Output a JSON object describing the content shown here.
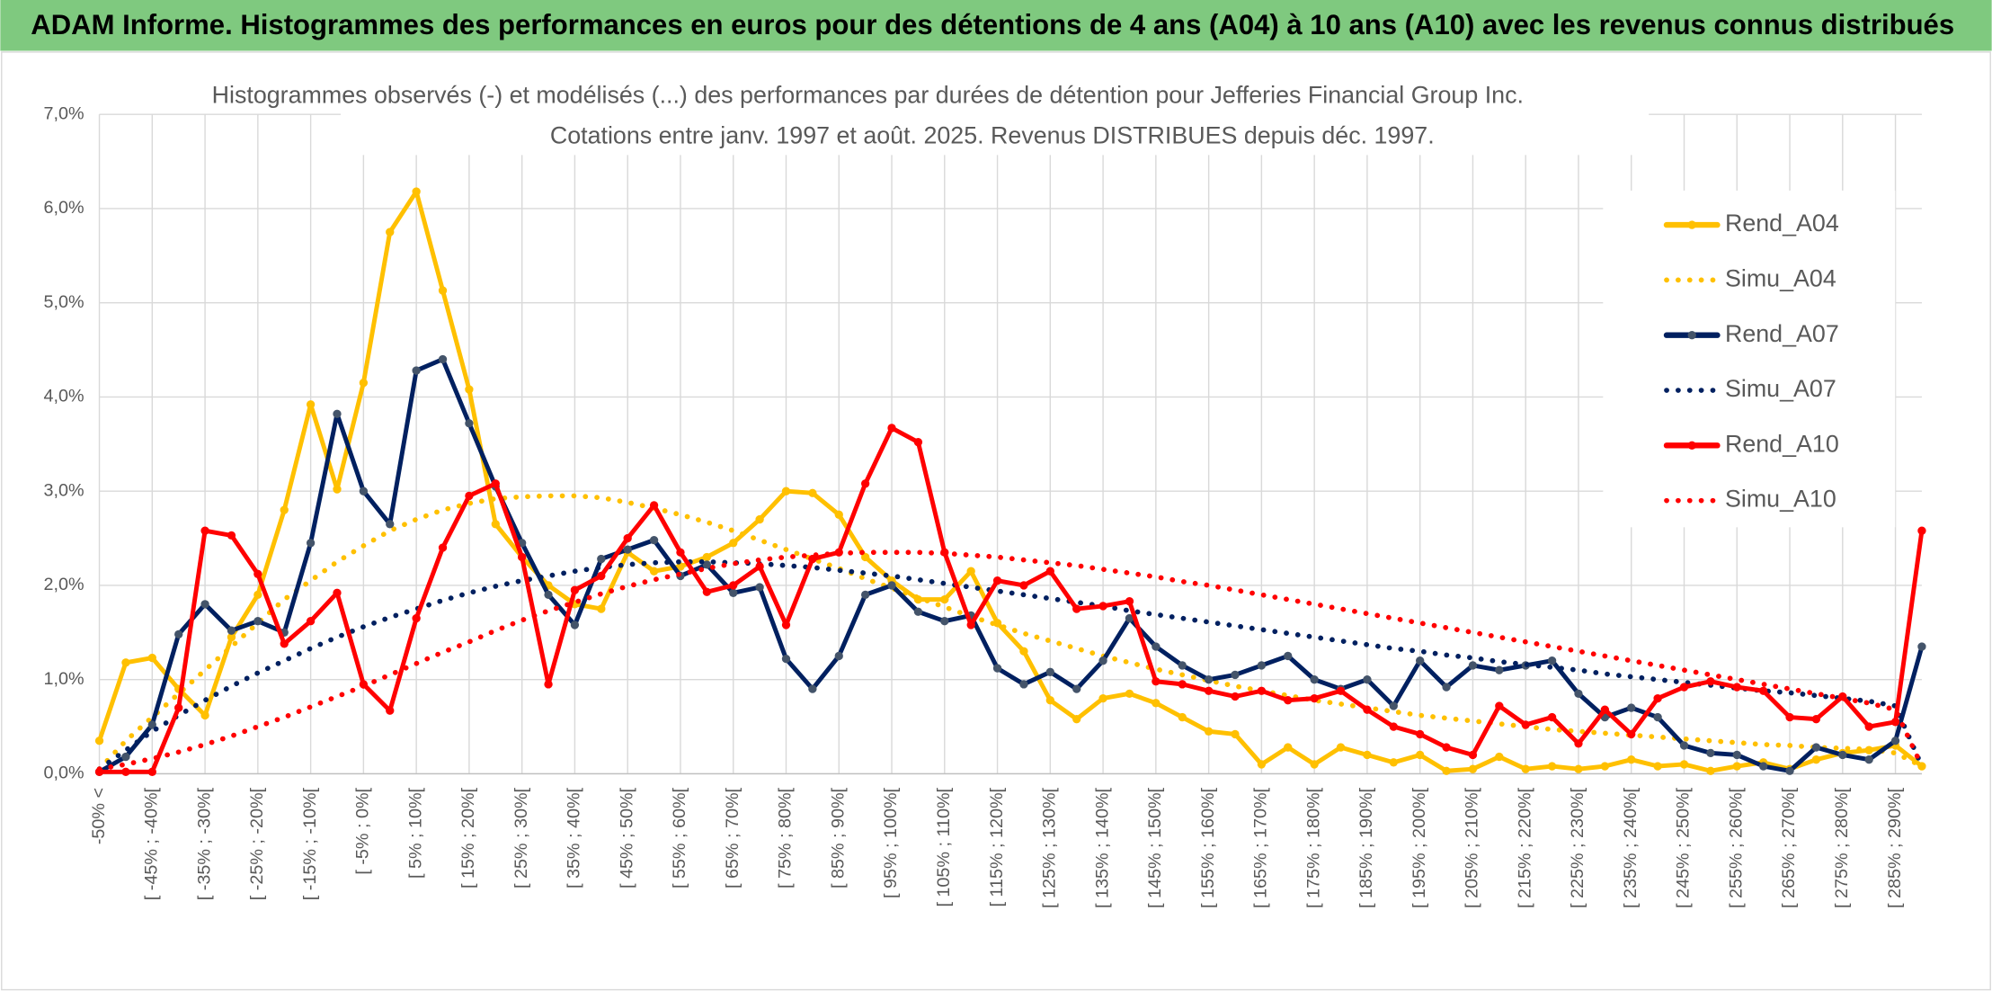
{
  "header": {
    "title": "ADAM Informe. Histogrammes des performances en euros pour des détentions de 4 ans (A04) à 10 ans (A10) avec les revenus connus distribués"
  },
  "chart_data": {
    "type": "line",
    "title": "Histogrammes observés (-) et modélisés (...) des performances par durées de détention pour Jefferies Financial Group Inc.",
    "subtitle": "Cotations entre janv. 1997 et août. 2025. Revenus DISTRIBUES depuis déc. 1997.",
    "categories": [
      "-50% <",
      null,
      "[ -45% ; -40%[",
      null,
      "[ -35% ; -30%[",
      null,
      "[ -25% ; -20%[",
      null,
      "[ -15% ; -10%[",
      null,
      "[ -5% ; 0%[",
      null,
      "[ 5% ; 10%[",
      null,
      "[ 15% ; 20%[",
      null,
      "[ 25% ; 30%[",
      null,
      "[ 35% ; 40%[",
      null,
      "[ 45% ; 50%[",
      null,
      "[ 55% ; 60%[",
      null,
      "[ 65% ; 70%[",
      null,
      "[ 75% ; 80%[",
      null,
      "[ 85% ; 90%[",
      null,
      "[ 95% ; 100%[",
      null,
      "[ 105% ; 110%[",
      null,
      "[ 115% ; 120%[",
      null,
      "[ 125% ; 130%[",
      null,
      "[ 135% ; 140%[",
      null,
      "[ 145% ; 150%[",
      null,
      "[ 155% ; 160%[",
      null,
      "[ 165% ; 170%[",
      null,
      "[ 175% ; 180%[",
      null,
      "[ 185% ; 190%[",
      null,
      "[ 195% ; 200%[",
      null,
      "[ 205% ; 210%[",
      null,
      "[ 215% ; 220%[",
      null,
      "[ 225% ; 230%[",
      null,
      "[ 235% ; 240%[",
      null,
      "[ 245% ; 250%[",
      null,
      "[ 255% ; 260%[",
      null,
      "[ 265% ; 270%[",
      null,
      "[ 275% ; 280%[",
      null,
      "[ 285% ; 290%[",
      null
    ],
    "series": [
      {
        "name": "Rend_A04",
        "color": "#ffc000",
        "line_style": "solid",
        "markers": true,
        "values": [
          0.35,
          1.18,
          1.23,
          0.9,
          0.62,
          1.45,
          1.9,
          2.8,
          3.92,
          3.02,
          4.15,
          5.75,
          6.18,
          5.13,
          4.08,
          2.65,
          2.3,
          2.0,
          1.8,
          1.75,
          2.35,
          2.15,
          2.2,
          2.3,
          2.45,
          2.7,
          3.0,
          2.98,
          2.75,
          2.3,
          2.05,
          1.85,
          1.85,
          2.15,
          1.6,
          1.3,
          0.78,
          0.58,
          0.8,
          0.85,
          0.75,
          0.6,
          0.45,
          0.42,
          0.1,
          0.28,
          0.1,
          0.28,
          0.2,
          0.12,
          0.2,
          0.03,
          0.05,
          0.18,
          0.05,
          0.08,
          0.05,
          0.08,
          0.15,
          0.08,
          0.1,
          0.03,
          0.08,
          0.12,
          0.05,
          0.15,
          0.22,
          0.25,
          0.3,
          0.08
        ]
      },
      {
        "name": "Simu_A04",
        "color": "#ffc000",
        "line_style": "dotted",
        "markers": false,
        "values": [
          0.05,
          0.35,
          0.6,
          0.85,
          1.1,
          1.35,
          1.6,
          1.85,
          2.05,
          2.25,
          2.42,
          2.58,
          2.7,
          2.8,
          2.87,
          2.92,
          2.94,
          2.95,
          2.95,
          2.93,
          2.88,
          2.82,
          2.75,
          2.67,
          2.58,
          2.48,
          2.38,
          2.28,
          2.18,
          2.07,
          1.97,
          1.87,
          1.77,
          1.67,
          1.58,
          1.49,
          1.41,
          1.33,
          1.25,
          1.18,
          1.11,
          1.05,
          0.99,
          0.93,
          0.88,
          0.83,
          0.78,
          0.74,
          0.7,
          0.66,
          0.62,
          0.59,
          0.56,
          0.53,
          0.5,
          0.47,
          0.45,
          0.43,
          0.41,
          0.39,
          0.37,
          0.35,
          0.33,
          0.31,
          0.3,
          0.28,
          0.27,
          0.26,
          0.22,
          0.08
        ]
      },
      {
        "name": "Rend_A07",
        "color": "#002060",
        "line_style": "solid",
        "markers": true,
        "marker_color": "#44546a",
        "values": [
          0.02,
          0.18,
          0.52,
          1.48,
          1.8,
          1.52,
          1.62,
          1.5,
          2.45,
          3.82,
          3.0,
          2.65,
          4.28,
          4.4,
          3.72,
          3.05,
          2.45,
          1.9,
          1.58,
          2.28,
          2.38,
          2.48,
          2.1,
          2.22,
          1.92,
          1.98,
          1.22,
          0.9,
          1.25,
          1.9,
          2.0,
          1.72,
          1.62,
          1.68,
          1.12,
          0.95,
          1.08,
          0.9,
          1.2,
          1.65,
          1.35,
          1.15,
          1.0,
          1.05,
          1.15,
          1.25,
          1.0,
          0.9,
          1.0,
          0.72,
          1.2,
          0.92,
          1.15,
          1.1,
          1.15,
          1.2,
          0.85,
          0.6,
          0.7,
          0.6,
          0.3,
          0.22,
          0.2,
          0.08,
          0.03,
          0.28,
          0.2,
          0.15,
          0.35,
          1.35
        ]
      },
      {
        "name": "Simu_A07",
        "color": "#002060",
        "line_style": "dotted",
        "markers": false,
        "values": [
          0.05,
          0.25,
          0.45,
          0.62,
          0.78,
          0.93,
          1.07,
          1.2,
          1.33,
          1.45,
          1.56,
          1.66,
          1.75,
          1.84,
          1.92,
          1.99,
          2.05,
          2.1,
          2.15,
          2.19,
          2.22,
          2.24,
          2.25,
          2.25,
          2.24,
          2.23,
          2.21,
          2.19,
          2.16,
          2.13,
          2.1,
          2.06,
          2.02,
          1.98,
          1.94,
          1.9,
          1.86,
          1.82,
          1.78,
          1.73,
          1.69,
          1.65,
          1.61,
          1.57,
          1.53,
          1.49,
          1.45,
          1.41,
          1.37,
          1.33,
          1.3,
          1.26,
          1.23,
          1.19,
          1.16,
          1.13,
          1.1,
          1.06,
          1.03,
          1.0,
          0.97,
          0.94,
          0.91,
          0.88,
          0.86,
          0.83,
          0.8,
          0.77,
          0.72,
          0.08
        ]
      },
      {
        "name": "Rend_A10",
        "color": "#ff0000",
        "line_style": "solid",
        "markers": true,
        "values": [
          0.02,
          0.02,
          0.02,
          0.7,
          2.58,
          2.53,
          2.12,
          1.38,
          1.62,
          1.92,
          0.95,
          0.67,
          1.65,
          2.4,
          2.95,
          3.08,
          2.3,
          0.95,
          1.95,
          2.1,
          2.5,
          2.85,
          2.35,
          1.93,
          2.0,
          2.2,
          1.58,
          2.28,
          2.35,
          3.08,
          3.67,
          3.52,
          2.35,
          1.58,
          2.05,
          2.0,
          2.15,
          1.75,
          1.78,
          1.83,
          0.98,
          0.95,
          0.88,
          0.82,
          0.88,
          0.78,
          0.8,
          0.88,
          0.68,
          0.5,
          0.42,
          0.28,
          0.2,
          0.72,
          0.52,
          0.6,
          0.32,
          0.68,
          0.42,
          0.8,
          0.92,
          0.98,
          0.92,
          0.88,
          0.6,
          0.58,
          0.82,
          0.5,
          0.55,
          2.58
        ]
      },
      {
        "name": "Simu_A10",
        "color": "#ff0000",
        "line_style": "dotted",
        "markers": false,
        "values": [
          0.05,
          0.1,
          0.16,
          0.23,
          0.31,
          0.4,
          0.5,
          0.6,
          0.71,
          0.82,
          0.93,
          1.05,
          1.17,
          1.29,
          1.4,
          1.52,
          1.63,
          1.73,
          1.82,
          1.91,
          1.99,
          2.06,
          2.12,
          2.18,
          2.23,
          2.27,
          2.3,
          2.32,
          2.34,
          2.35,
          2.35,
          2.35,
          2.34,
          2.32,
          2.3,
          2.27,
          2.24,
          2.21,
          2.17,
          2.13,
          2.09,
          2.04,
          2.0,
          1.95,
          1.9,
          1.85,
          1.8,
          1.75,
          1.7,
          1.65,
          1.6,
          1.55,
          1.5,
          1.45,
          1.4,
          1.35,
          1.3,
          1.25,
          1.2,
          1.15,
          1.1,
          1.05,
          1.0,
          0.95,
          0.9,
          0.85,
          0.8,
          0.75,
          0.68,
          0.08
        ]
      }
    ],
    "ylim": [
      0,
      7
    ],
    "yticks": [
      {
        "value": 0,
        "label": "0,0%"
      },
      {
        "value": 1,
        "label": "1,0%"
      },
      {
        "value": 2,
        "label": "2,0%"
      },
      {
        "value": 3,
        "label": "3,0%"
      },
      {
        "value": 4,
        "label": "4,0%"
      },
      {
        "value": 5,
        "label": "5,0%"
      },
      {
        "value": 6,
        "label": "6,0%"
      },
      {
        "value": 7,
        "label": "7,0%"
      }
    ],
    "grid": true,
    "legend": "right"
  }
}
